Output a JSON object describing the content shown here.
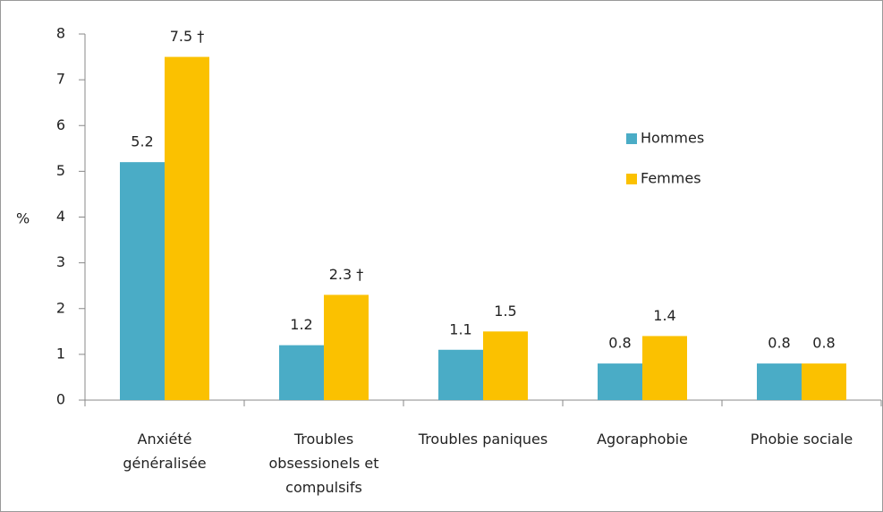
{
  "chart_data": {
    "type": "bar",
    "y_label": "%",
    "categories": [
      "Anxiété généralisée",
      "Troubles obsessionels et compulsifs",
      "Troubles paniques",
      "Agoraphobie",
      "Phobie sociale"
    ],
    "series": [
      {
        "name": "Hommes",
        "color": "#4aacc6",
        "values": [
          5.2,
          1.2,
          1.1,
          0.8,
          0.8
        ]
      },
      {
        "name": "Femmes",
        "color": "#fbc100",
        "values": [
          7.5,
          2.3,
          1.5,
          1.4,
          0.8
        ],
        "value_labels": [
          "7.5 †",
          "2.3 †",
          "1.5",
          "1.4",
          "0.8"
        ]
      }
    ],
    "ylim": [
      0,
      8
    ],
    "yticks": [
      0,
      1,
      2,
      3,
      4,
      5,
      6,
      7,
      8
    ],
    "grid": false,
    "legend": "upper right"
  }
}
